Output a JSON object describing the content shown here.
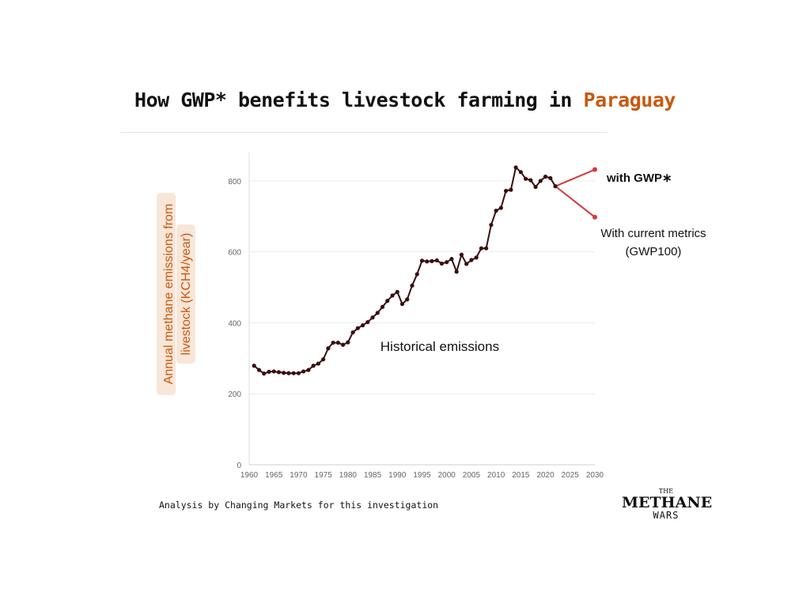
{
  "header": {
    "title_prefix": "How GWP* benefits livestock farming in ",
    "title_country": "Paraguay"
  },
  "footer": {
    "source": "Analysis by Changing Markets for this investigation"
  },
  "logo": {
    "the": "THE",
    "main": "METHANE",
    "sub": "WARS"
  },
  "colors": {
    "accent": "#c8590f",
    "historical_line": "#3a0f0f",
    "historical_point": "#3a0f0f",
    "projection": "#d03a3a",
    "label_bg": "#f8e6d8"
  },
  "chart_data": {
    "type": "line",
    "title": "How GWP* benefits livestock farming in Paraguay",
    "ylabel": "Annual methane emissions from livestock (KCH4/year)",
    "ylabel_lines": [
      "Annual methane emissions from",
      "livestock (KCH4/year)"
    ],
    "xlabel": "",
    "xlim": [
      1960,
      2030
    ],
    "ylim": [
      0,
      880
    ],
    "x_ticks": [
      1960,
      1965,
      1970,
      1975,
      1980,
      1985,
      1990,
      1995,
      2000,
      2005,
      2010,
      2015,
      2020,
      2025,
      2030
    ],
    "y_ticks": [
      0,
      200,
      400,
      600,
      800
    ],
    "grid": true,
    "series": [
      {
        "name": "Historical emissions",
        "x": [
          1961,
          1962,
          1963,
          1964,
          1965,
          1966,
          1967,
          1968,
          1969,
          1970,
          1971,
          1972,
          1973,
          1974,
          1975,
          1976,
          1977,
          1978,
          1979,
          1980,
          1981,
          1982,
          1983,
          1984,
          1985,
          1986,
          1987,
          1988,
          1989,
          1990,
          1991,
          1992,
          1993,
          1994,
          1995,
          1996,
          1997,
          1998,
          1999,
          2000,
          2001,
          2002,
          2003,
          2004,
          2005,
          2006,
          2007,
          2008,
          2009,
          2010,
          2011,
          2012,
          2013,
          2014,
          2015,
          2016,
          2017,
          2018,
          2019,
          2020,
          2021,
          2022
        ],
        "y": [
          279,
          267,
          257,
          262,
          263,
          261,
          259,
          258,
          258,
          258,
          263,
          267,
          279,
          285,
          297,
          328,
          344,
          344,
          338,
          345,
          373,
          385,
          393,
          402,
          415,
          428,
          445,
          462,
          477,
          487,
          453,
          466,
          505,
          537,
          575,
          573,
          574,
          576,
          567,
          571,
          580,
          544,
          592,
          566,
          577,
          584,
          610,
          610,
          676,
          716,
          724,
          772,
          775,
          838,
          825,
          806,
          802,
          783,
          800,
          812,
          808,
          785
        ]
      },
      {
        "name": "with GWP*",
        "x": [
          2022,
          2030
        ],
        "y": [
          785,
          832
        ]
      },
      {
        "name": "With current metrics (GWP100)",
        "x": [
          2022,
          2030
        ],
        "y": [
          785,
          698
        ]
      }
    ],
    "annotations": {
      "historical": "Historical emissions",
      "gwp_star": "with GWP∗",
      "gwp100_line1": "With current metrics",
      "gwp100_line2": "(GWP100)"
    }
  }
}
